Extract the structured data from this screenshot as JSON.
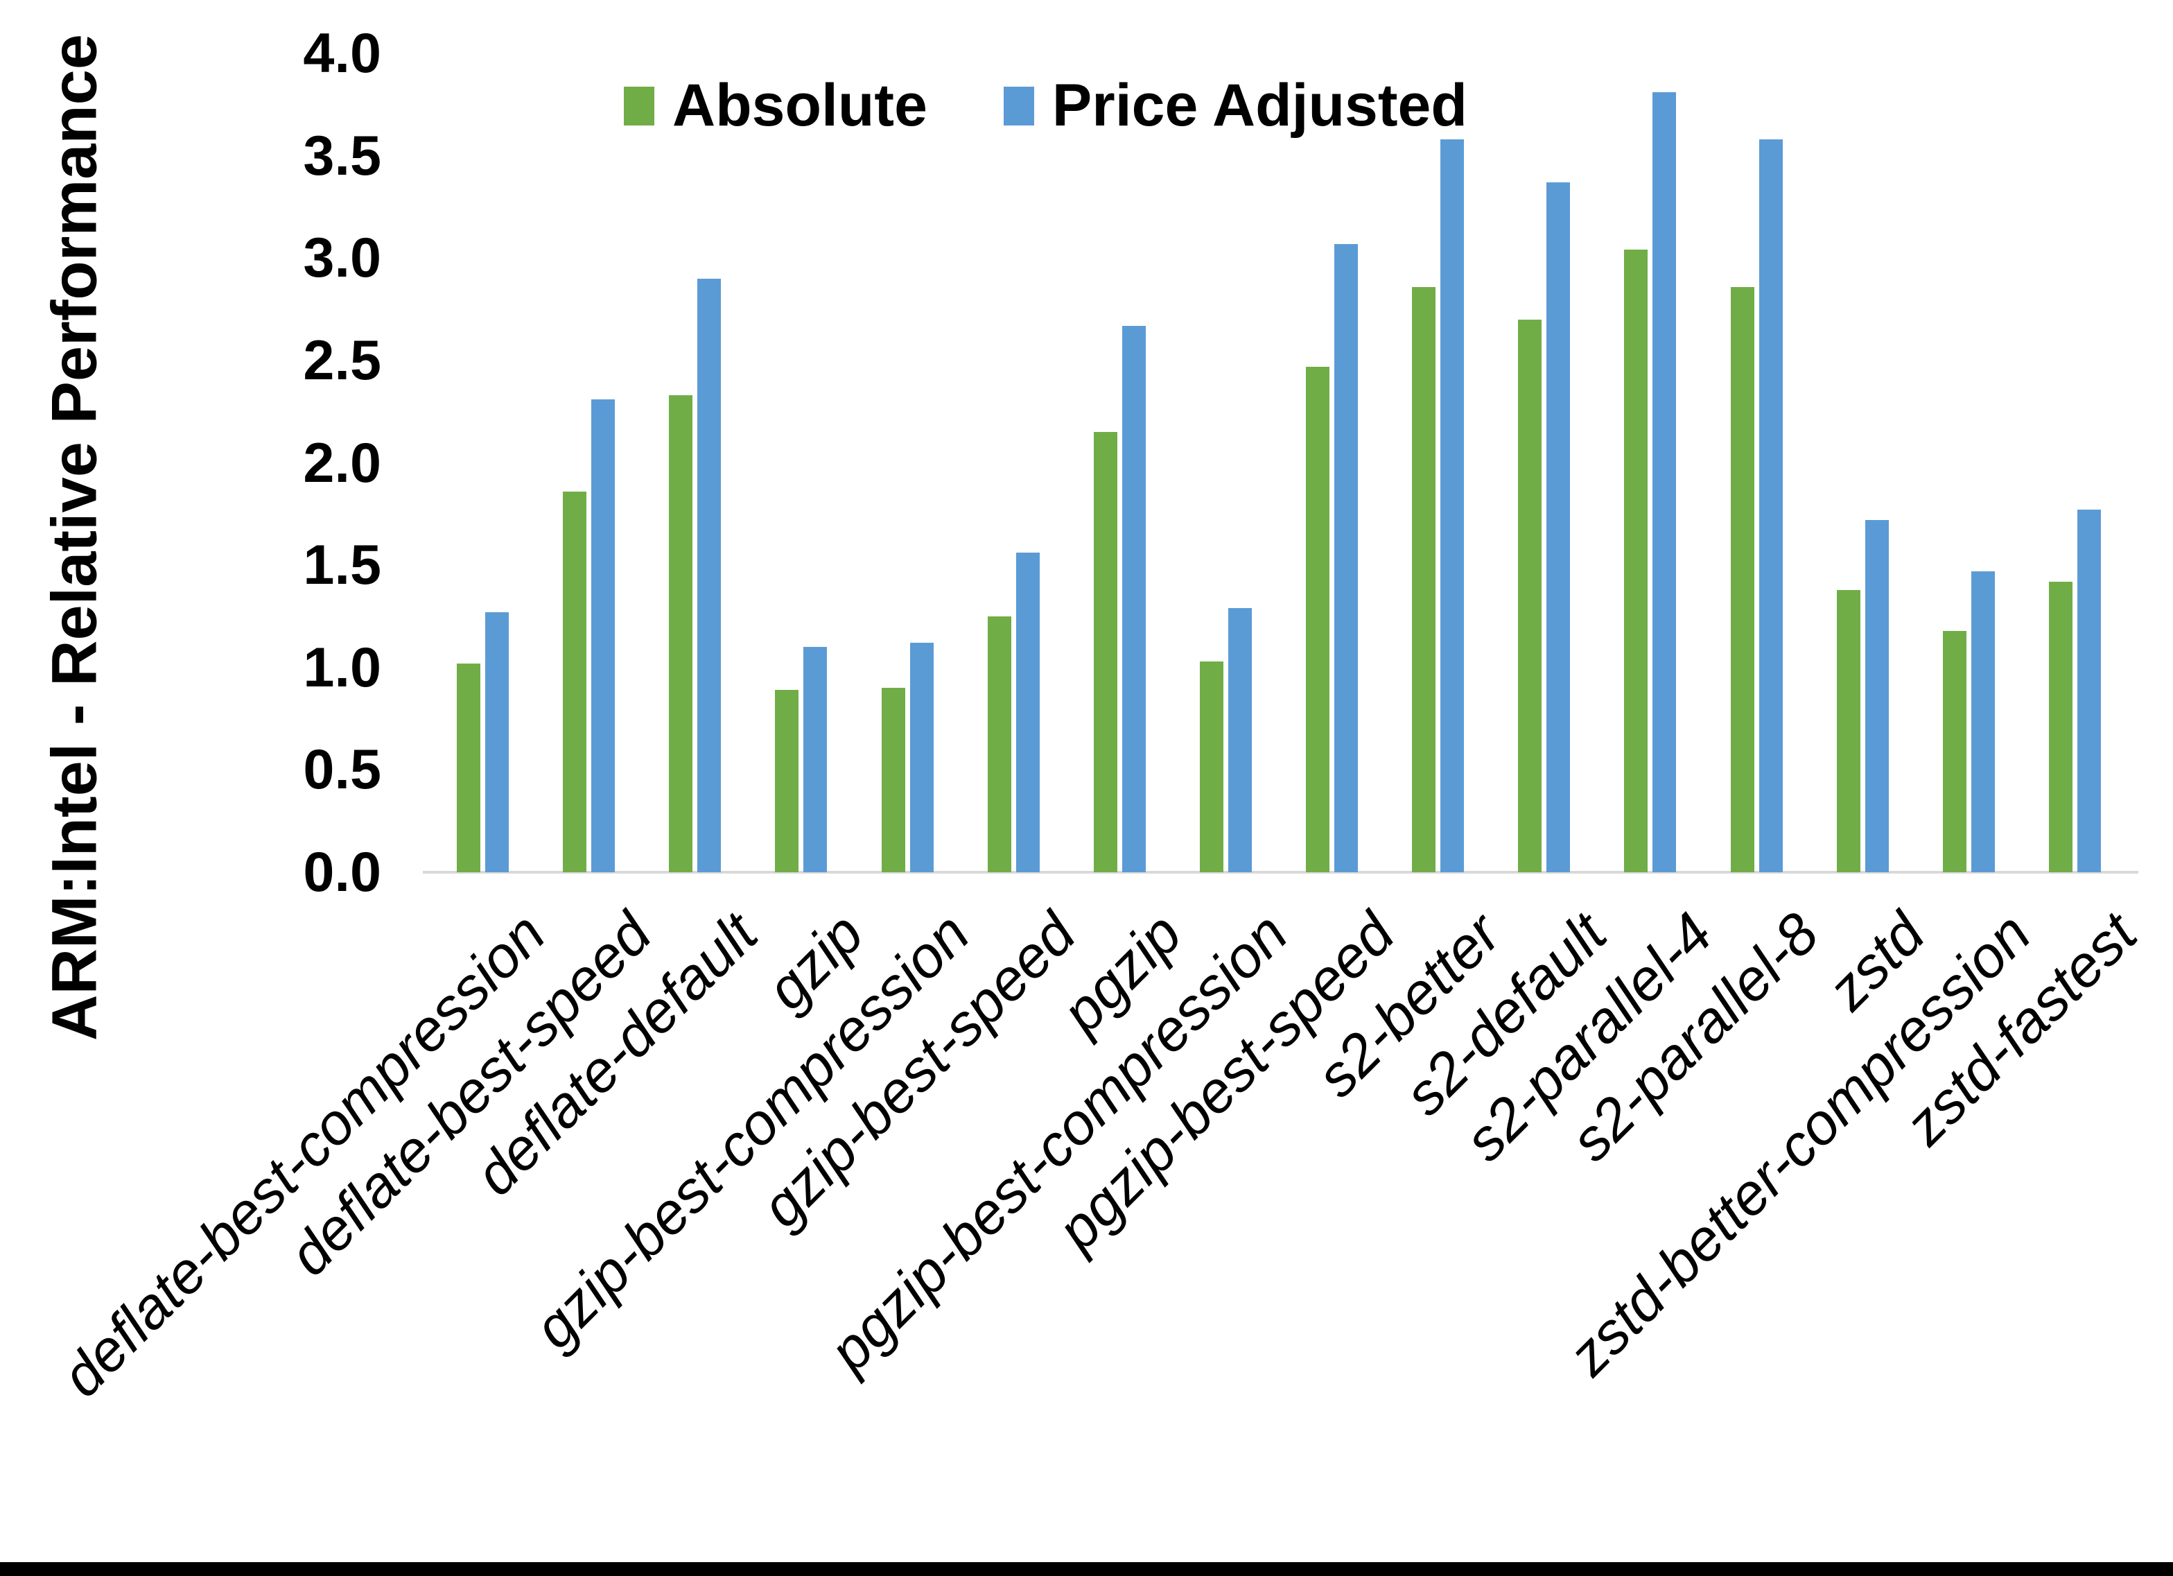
{
  "chart_data": {
    "type": "bar",
    "title": "",
    "xlabel": "",
    "ylabel": "ARM:Intel - Relative Performance",
    "ylim": [
      0.0,
      4.0
    ],
    "ytick_step": 0.5,
    "ytick_labels": [
      "0.0",
      "0.5",
      "1.0",
      "1.5",
      "2.0",
      "2.5",
      "3.0",
      "3.5",
      "4.0"
    ],
    "grid": false,
    "legend_position": "top-center",
    "axis_line_color": "#d9d9d9",
    "categories": [
      "deflate-best-compression",
      "deflate-best-speed",
      "deflate-default",
      "gzip",
      "gzip-best-compression",
      "gzip-best-speed",
      "pgzip",
      "pgzip-best-compression",
      "pgzip-best-speed",
      "s2-better",
      "s2-default",
      "s2-parallel-4",
      "s2-parallel-8",
      "zstd",
      "zstd-better-compression",
      "zstd-fastest"
    ],
    "series": [
      {
        "name": "Absolute",
        "color": "#70AD47",
        "values": [
          1.02,
          1.86,
          2.33,
          0.89,
          0.9,
          1.25,
          2.15,
          1.03,
          2.47,
          2.86,
          2.7,
          3.04,
          2.86,
          1.38,
          1.18,
          1.42
        ]
      },
      {
        "name": "Price Adjusted",
        "color": "#5B9BD5",
        "values": [
          1.27,
          2.31,
          2.9,
          1.1,
          1.12,
          1.56,
          2.67,
          1.29,
          3.07,
          3.58,
          3.37,
          3.81,
          3.58,
          1.72,
          1.47,
          1.77
        ]
      }
    ]
  }
}
